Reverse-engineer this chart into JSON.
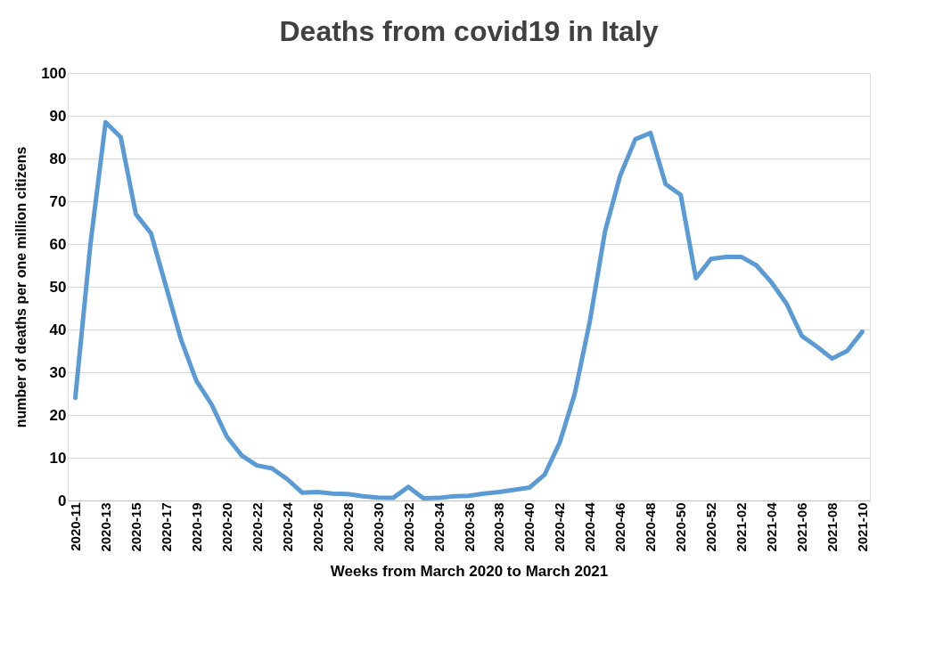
{
  "chart_data": {
    "type": "line",
    "title": "Deaths from covid19 in Italy",
    "xlabel": "Weeks from March 2020 to March 2021",
    "ylabel": "number of deaths per one million citizens",
    "categories": [
      "2020-11",
      null,
      "2020-13",
      null,
      "2020-15",
      null,
      "2020-17",
      null,
      "2020-19",
      null,
      "2020-20",
      null,
      "2020-22",
      null,
      "2020-24",
      null,
      "2020-26",
      null,
      "2020-28",
      null,
      "2020-30",
      null,
      "2020-32",
      null,
      "2020-34",
      null,
      "2020-36",
      null,
      "2020-38",
      null,
      "2020-40",
      null,
      "2020-42",
      null,
      "2020-44",
      null,
      "2020-46",
      null,
      "2020-48",
      null,
      "2020-50",
      null,
      "2020-52",
      null,
      "2021-02",
      null,
      "2021-04",
      null,
      "2021-06",
      null,
      "2021-08",
      null,
      "2021-10"
    ],
    "series": [
      {
        "color": "#5b9bd5",
        "values": [
          24,
          60,
          88.5,
          85,
          67,
          62.5,
          50,
          37.5,
          28,
          22.5,
          15,
          10.5,
          8.2,
          7.5,
          5,
          1.8,
          2,
          1.6,
          1.5,
          1,
          0.7,
          0.6,
          3.2,
          0.5,
          0.6,
          1,
          1.1,
          1.6,
          2,
          2.5,
          3,
          6,
          13.5,
          25,
          42,
          63,
          76,
          84.5,
          86,
          74,
          71.5,
          52,
          56.5,
          57,
          57,
          55,
          51,
          46,
          38.5,
          36,
          33.2,
          35,
          39.5
        ]
      }
    ],
    "ylim": [
      0,
      100
    ],
    "yticks": [
      0,
      10,
      20,
      30,
      40,
      50,
      60,
      70,
      80,
      90,
      100
    ],
    "grid": "y",
    "line_style": "solid"
  }
}
